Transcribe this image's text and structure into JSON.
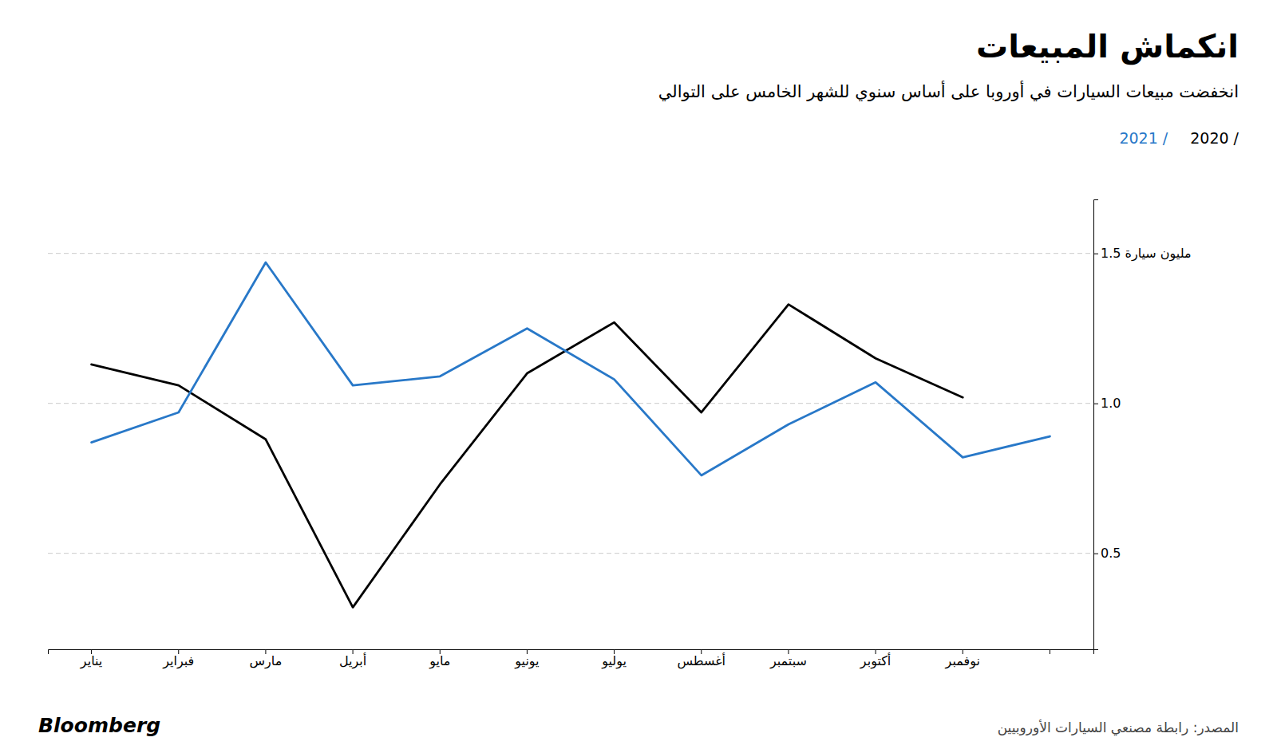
{
  "chart_data": {
    "type": "line",
    "title": "انكماش المبيعات",
    "subtitle": "انخفضت مبيعات السيارات في أوروبا على أساس سنوي للشهر الخامس على التوالي",
    "annotations": [
      "المصدر: رابطة مصنعي السيارات الأوروبيين",
      "Bloomberg"
    ],
    "categories": [
      "يناير",
      "فبراير",
      "مارس",
      "أبريل",
      "مايو",
      "يونيو",
      "يوليو",
      "أغسطس",
      "سبتمبر",
      "أكتوبر",
      "نوفمبر",
      null
    ],
    "series": [
      {
        "name": "2020 /",
        "color": "#000000",
        "values": [
          1.13,
          1.06,
          0.88,
          0.32,
          0.73,
          1.1,
          1.27,
          0.97,
          1.33,
          1.15,
          1.02,
          null
        ]
      },
      {
        "name": "2021 /",
        "color": "#2878C8",
        "values": [
          0.87,
          0.97,
          1.47,
          1.06,
          1.09,
          1.25,
          1.08,
          0.76,
          0.93,
          1.07,
          0.82,
          0.89
        ]
      }
    ],
    "ylim": [
      0.18,
      1.68
    ],
    "yticks": [
      {
        "value": 0.5,
        "label": "0.5"
      },
      {
        "value": 1.0,
        "label": "1.0"
      },
      {
        "value": 1.5,
        "label": "1.5 مليون سيارة"
      }
    ],
    "grid": true,
    "legend": "top-right"
  }
}
